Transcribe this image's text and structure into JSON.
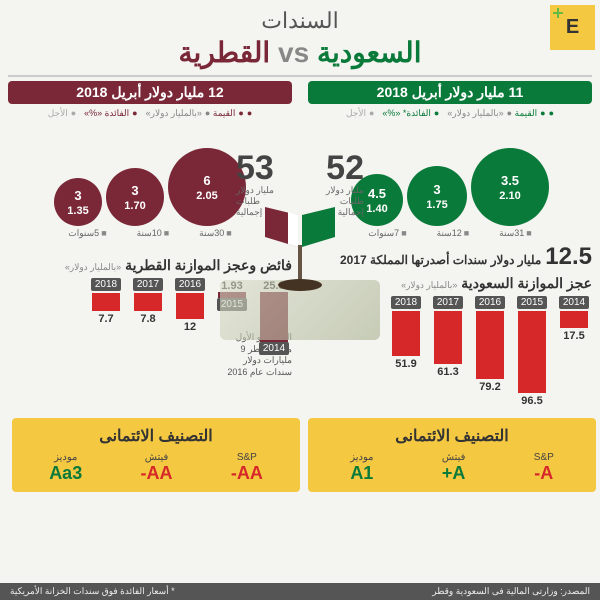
{
  "brand": "E",
  "title": "السندات",
  "subtitle": {
    "saudi": "السعودية",
    "vs": "vs",
    "qatari": "القطرية"
  },
  "cols": {
    "qatar": {
      "header": "12 مليار دولار  أبريل 2018",
      "legend": {
        "val": "القيمة",
        "valunit": "«بالمليار دولار»",
        "rate": "الفائدة «%»",
        "term": "الأجل"
      },
      "bubbles": [
        {
          "v": "6",
          "r": "2.05",
          "size": 78,
          "color": "#7a2838"
        },
        {
          "v": "3",
          "r": "1.70",
          "size": 58,
          "color": "#7a2838"
        },
        {
          "v": "3",
          "r": "1.35",
          "size": 48,
          "color": "#7a2838"
        }
      ],
      "summary": {
        "n": "53",
        "t": "مليار دولار طلبات إجمالية"
      },
      "terms": [
        "30سنة",
        "10سنة",
        "5سنوات"
      ],
      "budget_title": "فائض وعجز الموازنة القطرية",
      "budget_unit": "«بالمليار دولار»",
      "bars": [
        {
          "y": "2014",
          "v": "25.3",
          "h": 50,
          "c": "#7a2838",
          "up": true
        },
        {
          "y": "2015",
          "v": "1.93",
          "h": 6,
          "c": "#7a2838",
          "up": true
        },
        {
          "y": "2016",
          "v": "12",
          "h": 26,
          "c": "#d62828",
          "up": false
        },
        {
          "y": "2017",
          "v": "7.8",
          "h": 18,
          "c": "#d62828",
          "up": false
        },
        {
          "y": "2018",
          "v": "7.7",
          "h": 18,
          "c": "#d62828",
          "up": false
        }
      ],
      "note": "الطرح هو الأول منذ بيع قطر 9 مليارات دولار سندات عام 2016",
      "rating_title": "التصنيف الائتمانى",
      "ratings": [
        {
          "a": "S&P",
          "v": "AA-",
          "c": "rv-r"
        },
        {
          "a": "فيتش",
          "v": "AA-",
          "c": "rv-r"
        },
        {
          "a": "موديز",
          "v": "Aa3",
          "c": "rv-g"
        }
      ]
    },
    "saudi": {
      "header": "11 مليار دولار  أبريل 2018",
      "legend": {
        "val": "القيمة",
        "valunit": "«بالمليار دولار»",
        "rate": "الفائدة* «%»",
        "term": "الأجل"
      },
      "bubbles": [
        {
          "v": "3.5",
          "r": "2.10",
          "size": 78,
          "color": "#0a7a3a"
        },
        {
          "v": "3",
          "r": "1.75",
          "size": 60,
          "color": "#0a7a3a"
        },
        {
          "v": "4.5",
          "r": "1.40",
          "size": 52,
          "color": "#0a7a3a"
        }
      ],
      "summary": {
        "n": "52",
        "t": "مليار دولار طلبات إجمالية"
      },
      "terms": [
        "31سنة",
        "12سنة",
        "7سنوات"
      ],
      "extra_num": "12.5",
      "extra_txt": "مليار دولار سندات أصدرتها المملكة 2017",
      "budget_title": "عجز الموازنة السعودية",
      "budget_unit": "«بالمليار دولار»",
      "bars": [
        {
          "y": "2014",
          "v": "17.5",
          "h": 17,
          "c": "#d62828"
        },
        {
          "y": "2015",
          "v": "96.5",
          "h": 82,
          "c": "#d62828"
        },
        {
          "y": "2016",
          "v": "79.2",
          "h": 68,
          "c": "#d62828"
        },
        {
          "y": "2017",
          "v": "61.3",
          "h": 53,
          "c": "#d62828"
        },
        {
          "y": "2018",
          "v": "51.9",
          "h": 45,
          "c": "#d62828"
        }
      ],
      "rating_title": "التصنيف الائتمانى",
      "ratings": [
        {
          "a": "S&P",
          "v": "A-",
          "c": "rv-r"
        },
        {
          "a": "فيتش",
          "v": "A+",
          "c": "rv-g"
        },
        {
          "a": "موديز",
          "v": "A1",
          "c": "rv-g"
        }
      ]
    }
  },
  "footer": {
    "source": "المصدر: وزارتى المالية فى السعودية وقطر",
    "note": "* أسعار الفائدة فوق سندات الخزانة الأمريكية"
  }
}
